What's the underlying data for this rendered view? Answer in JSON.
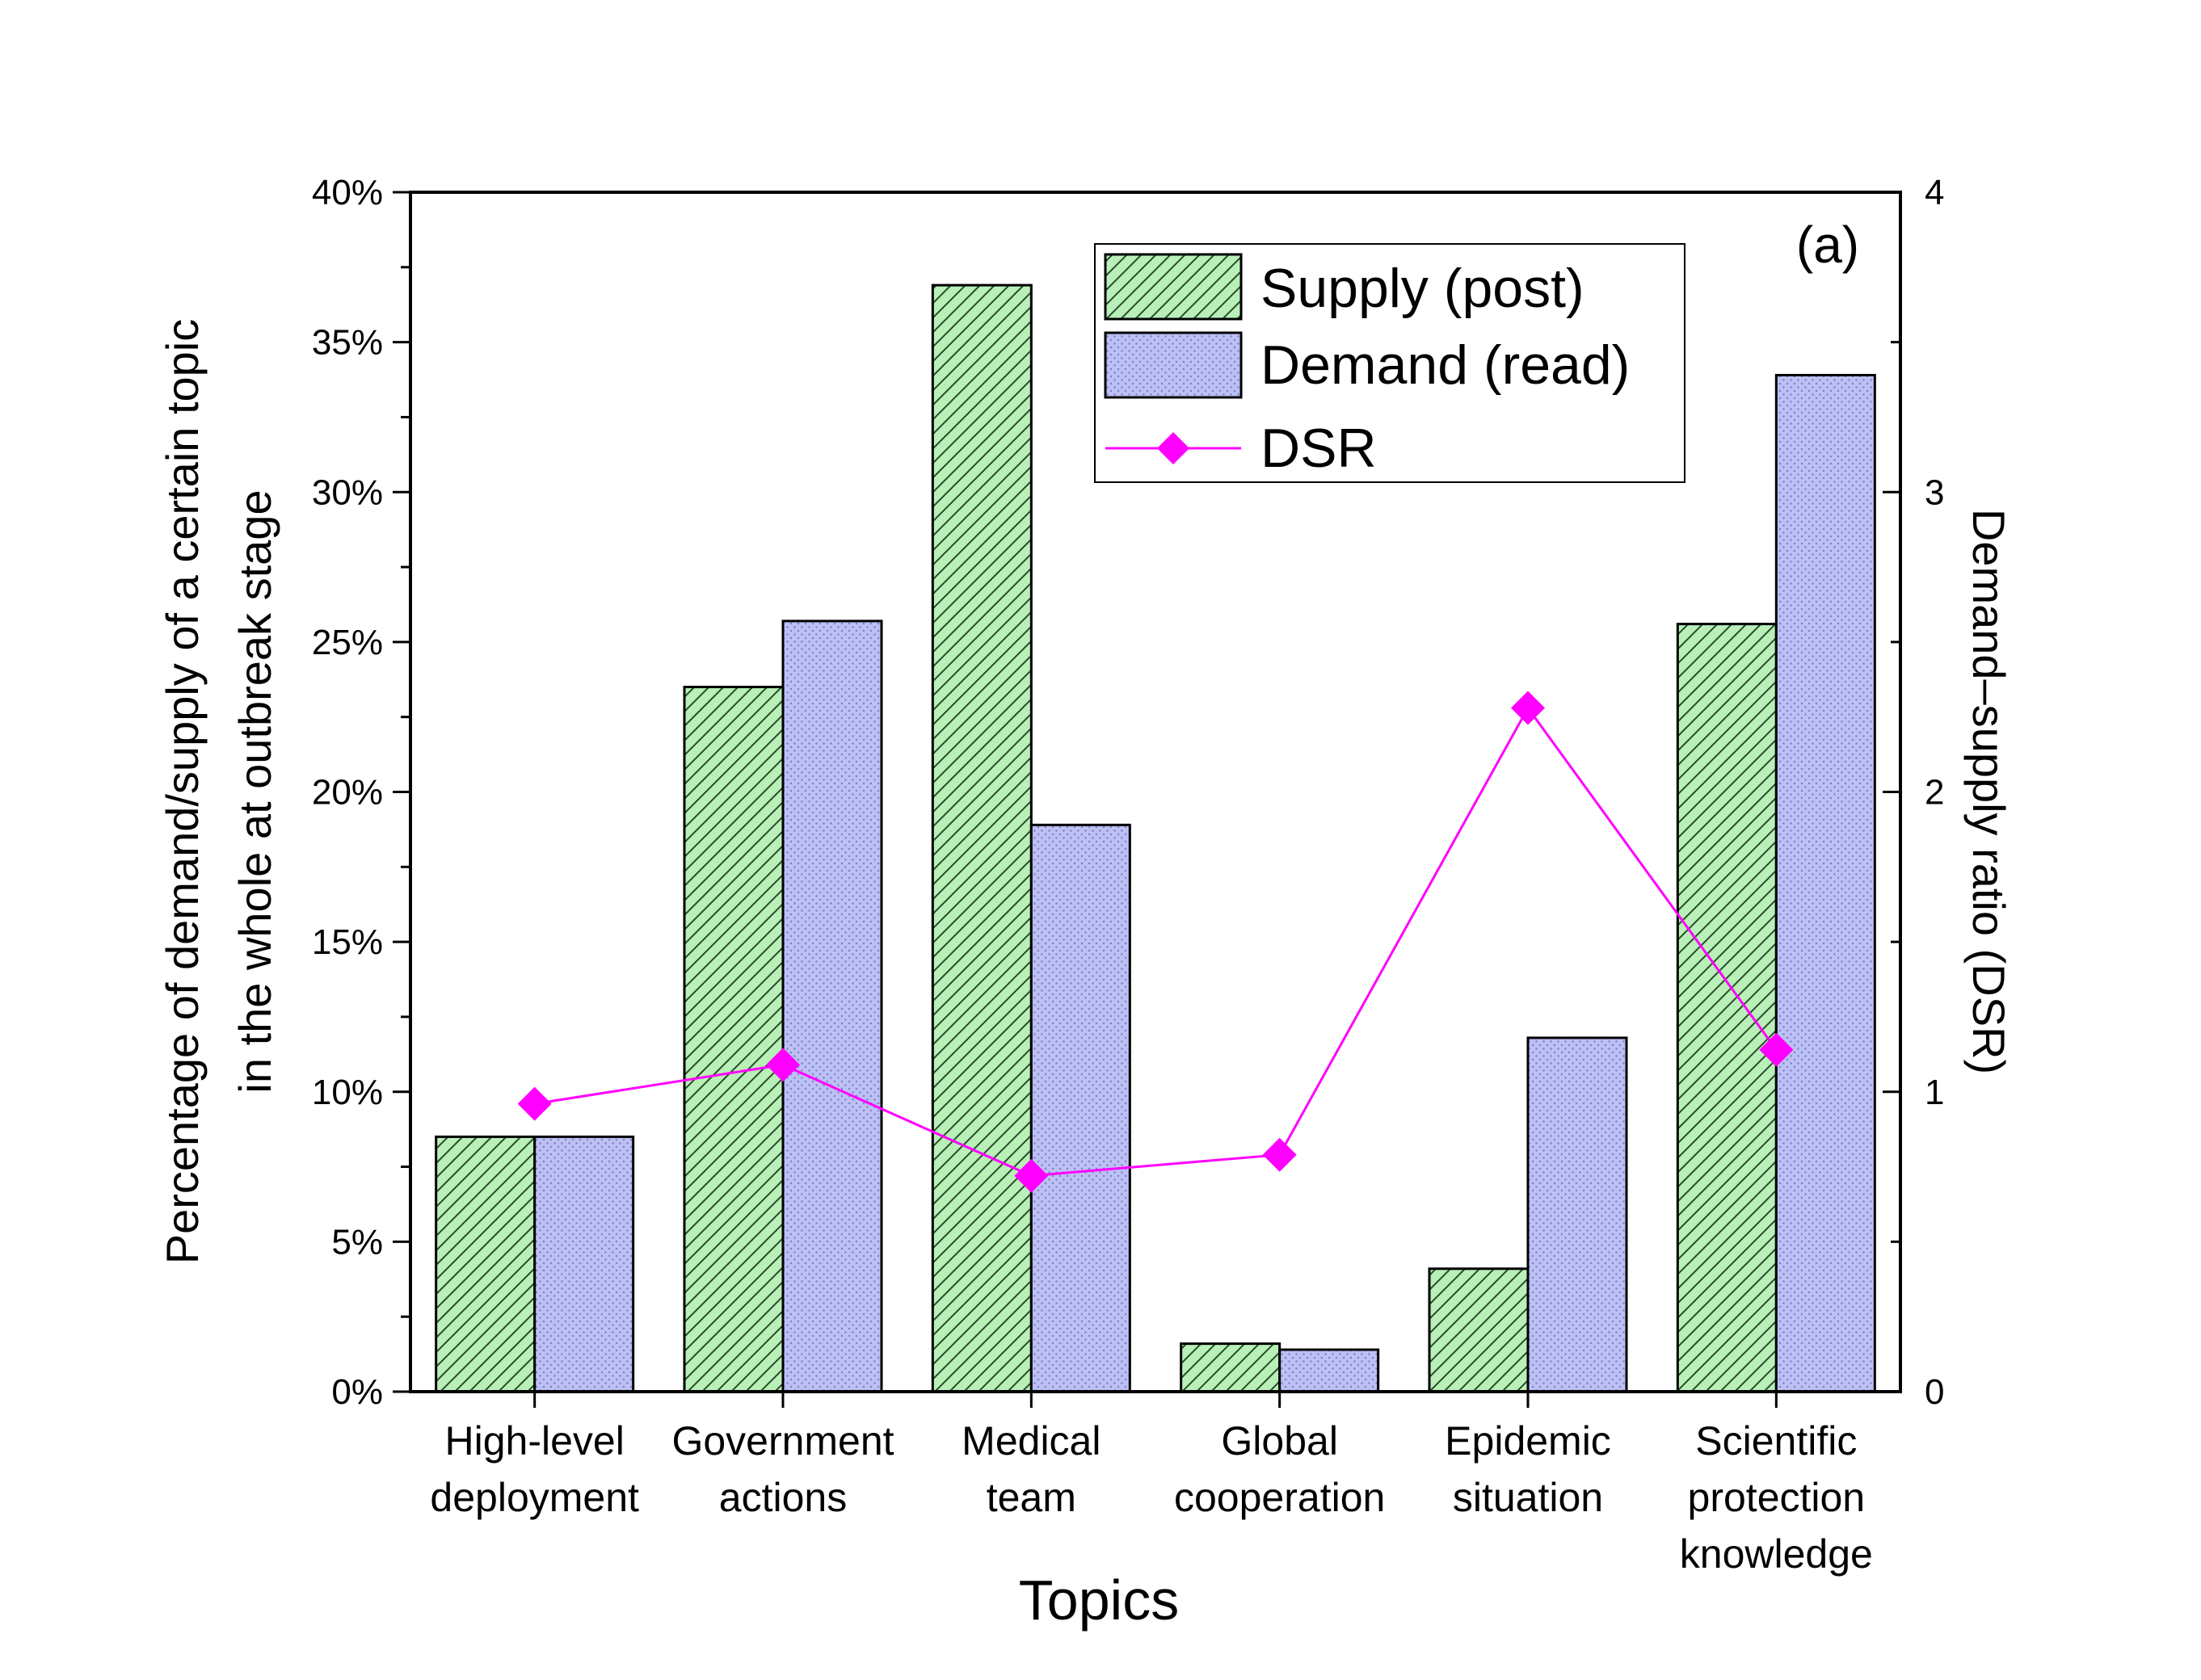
{
  "chart_data": {
    "type": "bar",
    "panel_label": "(a)",
    "categories": [
      [
        "High-level",
        "deployment"
      ],
      [
        "Government",
        "actions"
      ],
      [
        "Medical",
        "team"
      ],
      [
        "Global",
        "cooperation"
      ],
      [
        "Epidemic",
        "situation"
      ],
      [
        "Scientific",
        "protection",
        "knowledge"
      ]
    ],
    "series": [
      {
        "name": "Supply (post)",
        "kind": "bar",
        "axis": "left",
        "pattern": "diagonal-hatch",
        "color": "#b8f0b8",
        "values": [
          8.5,
          23.5,
          36.9,
          1.6,
          4.1,
          25.6
        ]
      },
      {
        "name": "Demand (read)",
        "kind": "bar",
        "axis": "left",
        "pattern": "dots",
        "color": "#b8bcf2",
        "values": [
          8.5,
          25.7,
          18.9,
          1.4,
          11.8,
          33.9
        ]
      },
      {
        "name": "DSR",
        "kind": "line",
        "axis": "right",
        "marker": "diamond",
        "color": "#ff00ff",
        "values": [
          0.96,
          1.09,
          0.72,
          0.79,
          2.28,
          1.14
        ]
      }
    ],
    "xlabel": "Topics",
    "ylabel": [
      "Percentage of demand/supply of a certain topic",
      "in the whole at outbreak stage"
    ],
    "y2label": "Demand–supply ratio (DSR)",
    "ylim": [
      0,
      40
    ],
    "y2lim": [
      0,
      4
    ],
    "yticks": [
      "0%",
      "5%",
      "10%",
      "15%",
      "20%",
      "25%",
      "30%",
      "35%",
      "40%"
    ],
    "y2ticks": [
      "0",
      "1",
      "2",
      "3",
      "4"
    ],
    "legend_position": "top-center",
    "grid": false
  }
}
